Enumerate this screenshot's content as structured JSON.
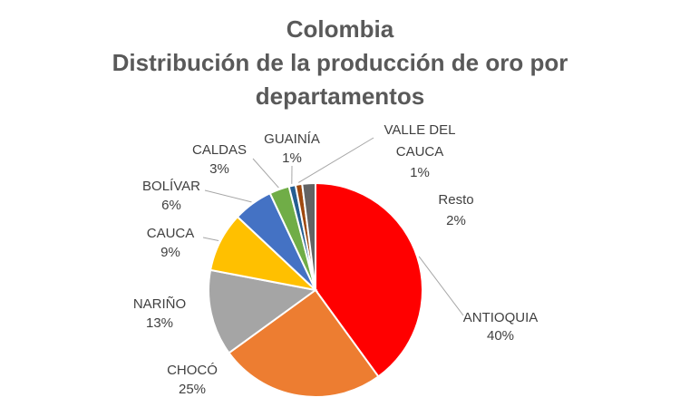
{
  "chart_data": {
    "type": "pie",
    "title_lines": [
      "Colombia",
      "Distribución de la producción de oro por",
      "departamentos"
    ],
    "slices": [
      {
        "name": "ANTIOQUIA",
        "label": "40%",
        "value": 40,
        "color": "#FF0000"
      },
      {
        "name": "CHOCÓ",
        "label": "25%",
        "value": 25,
        "color": "#ED7D31"
      },
      {
        "name": "NARIÑO",
        "label": "13%",
        "value": 13,
        "color": "#A5A5A5"
      },
      {
        "name": "CAUCA",
        "label": "9%",
        "value": 9,
        "color": "#FFC000"
      },
      {
        "name": "BOLÍVAR",
        "label": "6%",
        "value": 6,
        "color": "#4472C4"
      },
      {
        "name": "CALDAS",
        "label": "3%",
        "value": 3,
        "color": "#70AD47"
      },
      {
        "name": "GUAINÍA",
        "label": "1%",
        "value": 1,
        "color": "#255E91"
      },
      {
        "name": "VALLE DEL CAUCA",
        "label": "1%",
        "value": 1,
        "color": "#9E480E"
      },
      {
        "name": "Resto",
        "label": "2%",
        "value": 2,
        "color": "#636363"
      }
    ]
  }
}
